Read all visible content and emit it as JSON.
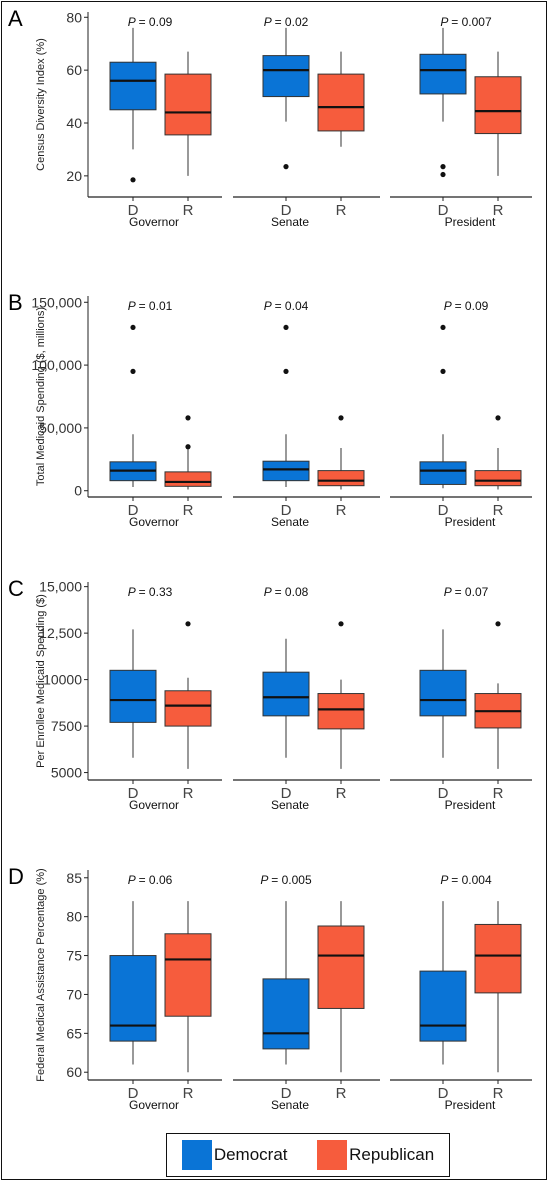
{
  "colors": {
    "democrat": "#0A74D6",
    "republican": "#F65C3D"
  },
  "legend": [
    {
      "label": "Democrat",
      "color": "#0A74D6"
    },
    {
      "label": "Republican",
      "color": "#F65C3D"
    }
  ],
  "chart_data": [
    {
      "type": "box",
      "panel": "A",
      "ylabel": "Census Diversity Index (%)",
      "ylim": [
        12,
        82
      ],
      "yticks": [
        20,
        40,
        60,
        80
      ],
      "ytick_labels": [
        "20",
        "40",
        "60",
        "80"
      ],
      "groups": [
        "D",
        "R"
      ],
      "facets": [
        {
          "name": "Governor",
          "p_prefix": "P",
          "p_value": "= 0.09",
          "boxes": [
            {
              "group": "D",
              "min": 30,
              "q1": 45,
              "median": 56,
              "q3": 63,
              "max": 76,
              "outliers": [
                18.5
              ]
            },
            {
              "group": "R",
              "min": 20,
              "q1": 35.5,
              "median": 44,
              "q3": 58.5,
              "max": 67,
              "outliers": []
            }
          ]
        },
        {
          "name": "Senate",
          "p_prefix": "P",
          "p_value": "= 0.02",
          "boxes": [
            {
              "group": "D",
              "min": 40.5,
              "q1": 50,
              "median": 60,
              "q3": 65.5,
              "max": 76,
              "outliers": [
                23.5
              ]
            },
            {
              "group": "R",
              "min": 31,
              "q1": 37,
              "median": 46,
              "q3": 58.5,
              "max": 67,
              "outliers": []
            }
          ]
        },
        {
          "name": "President",
          "p_prefix": "P",
          "p_value": "= 0.007",
          "boxes": [
            {
              "group": "D",
              "min": 40.5,
              "q1": 51,
              "median": 60,
              "q3": 66,
              "max": 76,
              "outliers": [
                23.5,
                20.5
              ]
            },
            {
              "group": "R",
              "min": 20,
              "q1": 36,
              "median": 44.5,
              "q3": 57.5,
              "max": 67,
              "outliers": []
            }
          ]
        }
      ]
    },
    {
      "type": "box",
      "panel": "B",
      "ylabel": "Total Medicaid Spending ($, millions)",
      "ylim": [
        -5000,
        155000
      ],
      "yticks": [
        0,
        50000,
        100000,
        150000
      ],
      "ytick_labels": [
        "0",
        "50,000",
        "100,000",
        "150,000"
      ],
      "groups": [
        "D",
        "R"
      ],
      "facets": [
        {
          "name": "Governor",
          "p_prefix": "P",
          "p_value": "= 0.01",
          "boxes": [
            {
              "group": "D",
              "min": 3000,
              "q1": 8000,
              "median": 16000,
              "q3": 23000,
              "max": 45000,
              "outliers": [
                130000,
                95000
              ]
            },
            {
              "group": "R",
              "min": 1000,
              "q1": 3500,
              "median": 7000,
              "q3": 15000,
              "max": 33000,
              "outliers": [
                58000,
                35000
              ]
            }
          ]
        },
        {
          "name": "Senate",
          "p_prefix": "P",
          "p_value": "= 0.04",
          "boxes": [
            {
              "group": "D",
              "min": 3000,
              "q1": 8000,
              "median": 17000,
              "q3": 23500,
              "max": 45000,
              "outliers": [
                130000,
                95000
              ]
            },
            {
              "group": "R",
              "min": 1000,
              "q1": 4000,
              "median": 8000,
              "q3": 16000,
              "max": 34000,
              "outliers": [
                58000
              ]
            }
          ]
        },
        {
          "name": "President",
          "p_prefix": "P",
          "p_value": "= 0.09",
          "boxes": [
            {
              "group": "D",
              "min": 2000,
              "q1": 5000,
              "median": 16000,
              "q3": 23000,
              "max": 45000,
              "outliers": [
                130000,
                95000
              ]
            },
            {
              "group": "R",
              "min": 1000,
              "q1": 4000,
              "median": 8000,
              "q3": 16000,
              "max": 34000,
              "outliers": [
                58000
              ]
            }
          ]
        }
      ]
    },
    {
      "type": "box",
      "panel": "C",
      "ylabel": "Per Enrollee Medicaid Spending ($)",
      "ylim": [
        4600,
        15250
      ],
      "yticks": [
        5000,
        7500,
        10000,
        12500,
        15000
      ],
      "ytick_labels": [
        "5000",
        "7500",
        "10000",
        "12,500",
        "15,000"
      ],
      "groups": [
        "D",
        "R"
      ],
      "facets": [
        {
          "name": "Governor",
          "p_prefix": "P",
          "p_value": "= 0.33",
          "boxes": [
            {
              "group": "D",
              "min": 5800,
              "q1": 7700,
              "median": 8900,
              "q3": 10500,
              "max": 12700,
              "outliers": []
            },
            {
              "group": "R",
              "min": 5200,
              "q1": 7500,
              "median": 8600,
              "q3": 9400,
              "max": 10100,
              "outliers": [
                13000
              ]
            }
          ]
        },
        {
          "name": "Senate",
          "p_prefix": "P",
          "p_value": "= 0.08",
          "boxes": [
            {
              "group": "D",
              "min": 5800,
              "q1": 8050,
              "median": 9050,
              "q3": 10400,
              "max": 12200,
              "outliers": []
            },
            {
              "group": "R",
              "min": 5200,
              "q1": 7350,
              "median": 8400,
              "q3": 9250,
              "max": 10000,
              "outliers": [
                13000
              ]
            }
          ]
        },
        {
          "name": "President",
          "p_prefix": "P",
          "p_value": "= 0.07",
          "boxes": [
            {
              "group": "D",
              "min": 5800,
              "q1": 8050,
              "median": 8900,
              "q3": 10500,
              "max": 12700,
              "outliers": []
            },
            {
              "group": "R",
              "min": 5200,
              "q1": 7400,
              "median": 8300,
              "q3": 9250,
              "max": 9800,
              "outliers": [
                13000
              ]
            }
          ]
        }
      ]
    },
    {
      "type": "box",
      "panel": "D",
      "ylabel": "Federal Medical Assistance Percentage  (%)",
      "ylim": [
        59,
        86
      ],
      "yticks": [
        60,
        65,
        70,
        75,
        80,
        85
      ],
      "ytick_labels": [
        "60",
        "65",
        "70",
        "75",
        "80",
        "85"
      ],
      "groups": [
        "D",
        "R"
      ],
      "facets": [
        {
          "name": "Governor",
          "p_prefix": "P",
          "p_value": "= 0.06",
          "boxes": [
            {
              "group": "D",
              "min": 61,
              "q1": 64,
              "median": 66,
              "q3": 75,
              "max": 82,
              "outliers": []
            },
            {
              "group": "R",
              "min": 60,
              "q1": 67.2,
              "median": 74.5,
              "q3": 77.8,
              "max": 82,
              "outliers": []
            }
          ]
        },
        {
          "name": "Senate",
          "p_prefix": "P",
          "p_value": "= 0.005",
          "boxes": [
            {
              "group": "D",
              "min": 61,
              "q1": 63,
              "median": 65,
              "q3": 72,
              "max": 82,
              "outliers": []
            },
            {
              "group": "R",
              "min": 60,
              "q1": 68.2,
              "median": 75,
              "q3": 78.8,
              "max": 82,
              "outliers": []
            }
          ]
        },
        {
          "name": "President",
          "p_prefix": "P",
          "p_value": "= 0.004",
          "boxes": [
            {
              "group": "D",
              "min": 61,
              "q1": 64,
              "median": 66,
              "q3": 73,
              "max": 82,
              "outliers": []
            },
            {
              "group": "R",
              "min": 60,
              "q1": 70.2,
              "median": 75,
              "q3": 79,
              "max": 82,
              "outliers": []
            }
          ]
        }
      ]
    }
  ]
}
